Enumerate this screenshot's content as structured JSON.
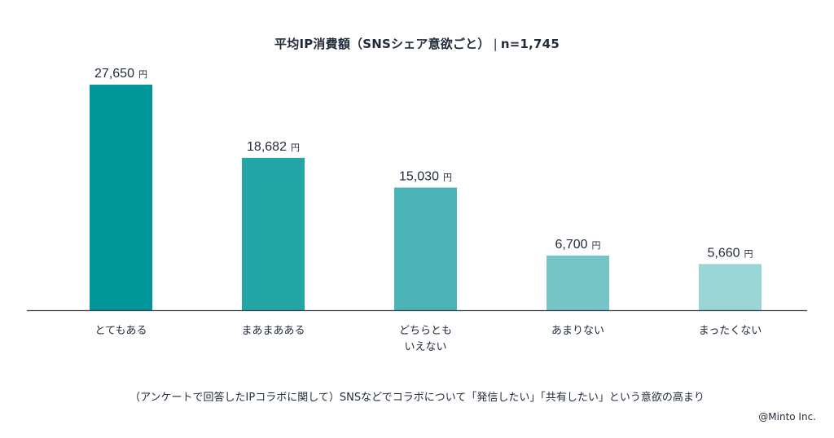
{
  "chart_data": {
    "type": "bar",
    "title": "平均IP消費額（SNSシェア意欲ごと）",
    "n_label": "n=1,745",
    "unit": "円",
    "categories": [
      [
        "とてもある"
      ],
      [
        "まあまあある"
      ],
      [
        "どちらとも",
        "いえない"
      ],
      [
        "あまりない"
      ],
      [
        "まったくない"
      ]
    ],
    "values": [
      27650,
      18682,
      15030,
      6700,
      5660
    ],
    "value_labels": [
      "27,650",
      "18,682",
      "15,030",
      "6,700",
      "5,660"
    ],
    "colors": [
      "#009597",
      "#24a5a6",
      "#4cb4b6",
      "#75c4c6",
      "#9ad5d6"
    ],
    "axis_color": "#3a4150",
    "ylim": [
      0,
      27650
    ]
  },
  "footnote": "（アンケートで回答したIPコラボに関して）SNSなどでコラボについて「発信したい」「共有したい」という意欲の高まり",
  "credit": "@Minto Inc."
}
